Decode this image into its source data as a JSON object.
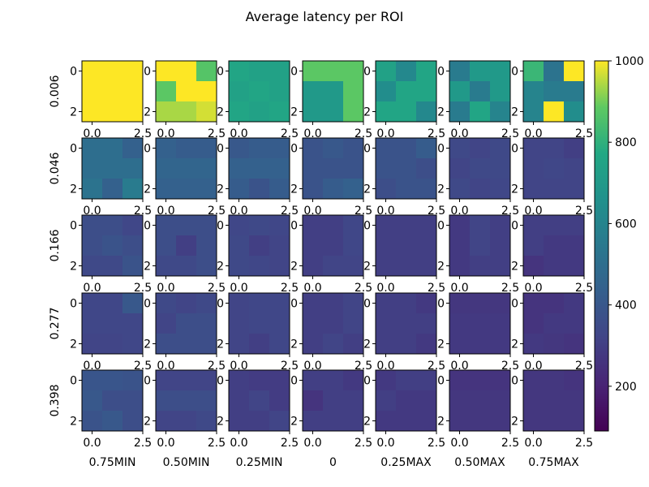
{
  "chart_data": {
    "type": "heatmap",
    "title": "Average latency per ROI",
    "row_labels": [
      "0.006",
      "0.046",
      "0.166",
      "0.277",
      "0.398"
    ],
    "col_labels": [
      "0.75MIN",
      "0.50MIN",
      "0.25MIN",
      "0",
      "0.25MAX",
      "0.50MAX",
      "0.75MAX"
    ],
    "subplot_x_ticks": [
      "0.0",
      "2.5"
    ],
    "subplot_y_ticks": [
      "0",
      "2"
    ],
    "colormap": "viridis",
    "color_range": [
      90,
      1000
    ],
    "colorbar_ticks": [
      200,
      400,
      600,
      800,
      1000
    ],
    "grid_size": [
      3,
      3
    ],
    "values": [
      [
        [
          [
            1000,
            1000,
            1000
          ],
          [
            1000,
            1000,
            1000
          ],
          [
            1000,
            1000,
            1000
          ]
        ],
        [
          [
            1000,
            1000,
            870
          ],
          [
            880,
            1000,
            1000
          ],
          [
            940,
            940,
            970
          ]
        ],
        [
          [
            760,
            740,
            740
          ],
          [
            740,
            760,
            740
          ],
          [
            760,
            740,
            760
          ]
        ],
        [
          [
            880,
            880,
            880
          ],
          [
            700,
            700,
            880
          ],
          [
            700,
            700,
            880
          ]
        ],
        [
          [
            740,
            620,
            760
          ],
          [
            640,
            760,
            760
          ],
          [
            760,
            760,
            620
          ]
        ],
        [
          [
            560,
            700,
            700
          ],
          [
            700,
            560,
            700
          ],
          [
            560,
            760,
            600
          ]
        ],
        [
          [
            820,
            520,
            1000
          ],
          [
            600,
            560,
            560
          ],
          [
            600,
            1000,
            640
          ]
        ]
      ],
      [
        [
          [
            500,
            500,
            440
          ],
          [
            500,
            500,
            500
          ],
          [
            520,
            440,
            560
          ]
        ],
        [
          [
            440,
            420,
            420
          ],
          [
            460,
            460,
            460
          ],
          [
            440,
            440,
            440
          ]
        ],
        [
          [
            400,
            420,
            420
          ],
          [
            440,
            440,
            440
          ],
          [
            420,
            380,
            420
          ]
        ],
        [
          [
            380,
            400,
            380
          ],
          [
            380,
            380,
            380
          ],
          [
            380,
            420,
            440
          ]
        ],
        [
          [
            380,
            380,
            420
          ],
          [
            380,
            380,
            360
          ],
          [
            360,
            380,
            380
          ]
        ],
        [
          [
            340,
            320,
            340
          ],
          [
            320,
            340,
            340
          ],
          [
            340,
            320,
            330
          ]
        ],
        [
          [
            320,
            320,
            300
          ],
          [
            320,
            330,
            320
          ],
          [
            320,
            320,
            320
          ]
        ]
      ],
      [
        [
          [
            360,
            360,
            330
          ],
          [
            360,
            380,
            360
          ],
          [
            340,
            340,
            380
          ]
        ],
        [
          [
            360,
            360,
            360
          ],
          [
            360,
            300,
            360
          ],
          [
            340,
            340,
            360
          ]
        ],
        [
          [
            330,
            340,
            330
          ],
          [
            340,
            300,
            320
          ],
          [
            340,
            330,
            320
          ]
        ],
        [
          [
            300,
            300,
            330
          ],
          [
            300,
            300,
            330
          ],
          [
            300,
            320,
            320
          ]
        ],
        [
          [
            300,
            300,
            300
          ],
          [
            300,
            300,
            300
          ],
          [
            300,
            300,
            300
          ]
        ],
        [
          [
            280,
            320,
            300
          ],
          [
            280,
            320,
            300
          ],
          [
            280,
            300,
            300
          ]
        ],
        [
          [
            300,
            300,
            300
          ],
          [
            300,
            280,
            280
          ],
          [
            260,
            280,
            280
          ]
        ]
      ],
      [
        [
          [
            330,
            330,
            400
          ],
          [
            330,
            330,
            330
          ],
          [
            320,
            320,
            330
          ]
        ],
        [
          [
            340,
            320,
            340
          ],
          [
            320,
            360,
            360
          ],
          [
            360,
            360,
            360
          ]
        ],
        [
          [
            320,
            330,
            330
          ],
          [
            320,
            330,
            330
          ],
          [
            320,
            300,
            330
          ]
        ],
        [
          [
            300,
            300,
            320
          ],
          [
            300,
            300,
            320
          ],
          [
            300,
            320,
            300
          ]
        ],
        [
          [
            300,
            300,
            280
          ],
          [
            300,
            300,
            300
          ],
          [
            300,
            300,
            280
          ]
        ],
        [
          [
            270,
            270,
            270
          ],
          [
            280,
            280,
            280
          ],
          [
            280,
            280,
            280
          ]
        ],
        [
          [
            260,
            260,
            280
          ],
          [
            260,
            280,
            280
          ],
          [
            280,
            270,
            260
          ]
        ]
      ],
      [
        [
          [
            390,
            390,
            380
          ],
          [
            400,
            360,
            360
          ],
          [
            380,
            400,
            360
          ]
        ],
        [
          [
            320,
            320,
            320
          ],
          [
            360,
            360,
            360
          ],
          [
            320,
            320,
            340
          ]
        ],
        [
          [
            300,
            290,
            290
          ],
          [
            300,
            320,
            290
          ],
          [
            300,
            300,
            320
          ]
        ],
        [
          [
            300,
            300,
            280
          ],
          [
            260,
            300,
            300
          ],
          [
            300,
            300,
            300
          ]
        ],
        [
          [
            280,
            300,
            300
          ],
          [
            300,
            280,
            280
          ],
          [
            280,
            280,
            280
          ]
        ],
        [
          [
            260,
            260,
            260
          ],
          [
            270,
            270,
            270
          ],
          [
            270,
            270,
            270
          ]
        ],
        [
          [
            270,
            270,
            260
          ],
          [
            270,
            270,
            270
          ],
          [
            270,
            270,
            270
          ]
        ]
      ]
    ]
  }
}
